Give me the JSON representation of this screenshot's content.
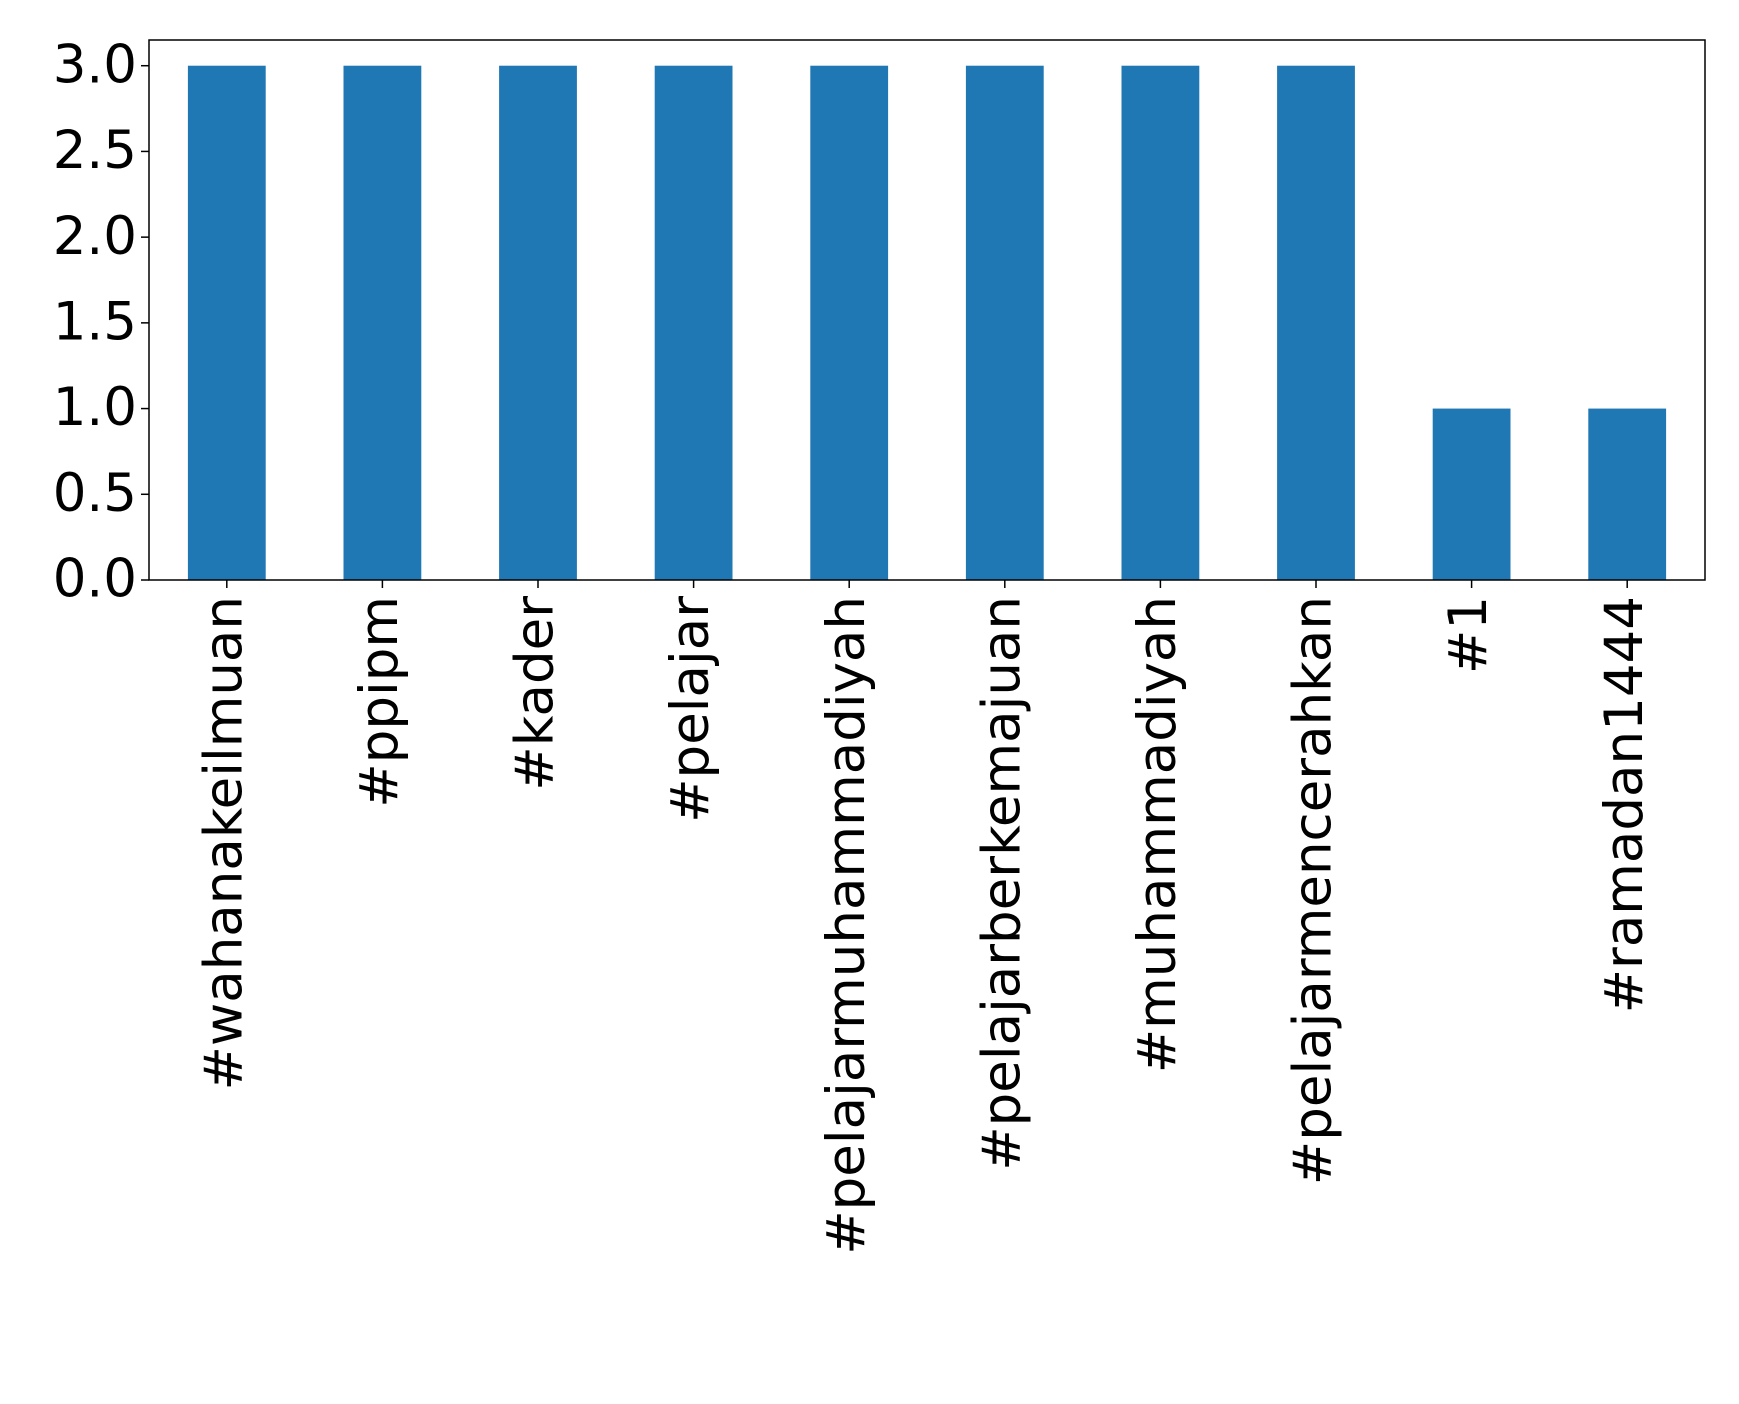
{
  "chart_data": {
    "type": "bar",
    "categories": [
      "#wahanakeilmuan",
      "#ppipm",
      "#kader",
      "#pelajar",
      "#pelajarmuhammadiyah",
      "#pelajarberkemajuan",
      "#muhammadiyah",
      "#pelajarmencerahkan",
      "#1",
      "#ramadan1444"
    ],
    "values": [
      3,
      3,
      3,
      3,
      3,
      3,
      3,
      3,
      1,
      1
    ],
    "color": "#1f77b4",
    "ylim": [
      0,
      3.15
    ],
    "yticks": [
      {
        "value": 0,
        "label": "0.0"
      },
      0.5,
      {
        "value": 1,
        "label": "1.0"
      },
      1.5,
      {
        "value": 2,
        "label": "2.0"
      },
      2.5,
      {
        "value": 3,
        "label": "3.0"
      }
    ],
    "grid": false
  }
}
